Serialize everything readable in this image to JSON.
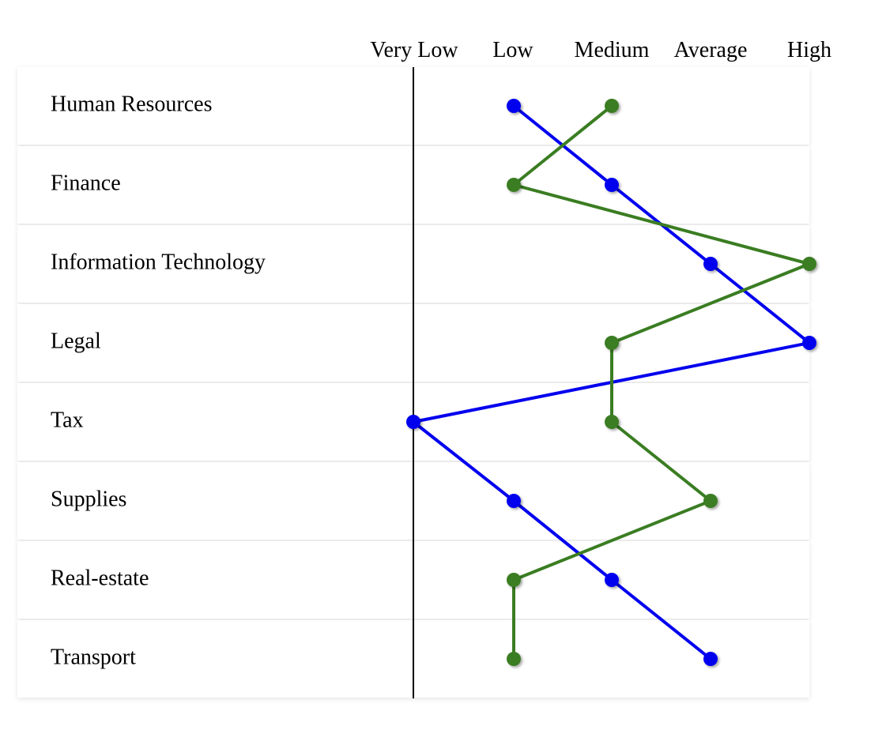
{
  "chart_data": {
    "type": "line",
    "levels": [
      "Very Low",
      "Low",
      "Medium",
      "Average",
      "High"
    ],
    "categories": [
      "Human Resources",
      "Finance",
      "Information Technology",
      "Legal",
      "Tax",
      "Supplies",
      "Real-estate",
      "Transport"
    ],
    "series": [
      {
        "values": [
          "Low",
          "Medium",
          "Average",
          "High",
          "Very Low",
          "Low",
          "Medium",
          "Average"
        ],
        "color": "#0000ee"
      },
      {
        "values": [
          "Medium",
          "Low",
          "High",
          "Medium",
          "Medium",
          "Average",
          "Low",
          "Low"
        ],
        "color": "#3a7d22"
      }
    ],
    "legend": "none"
  }
}
